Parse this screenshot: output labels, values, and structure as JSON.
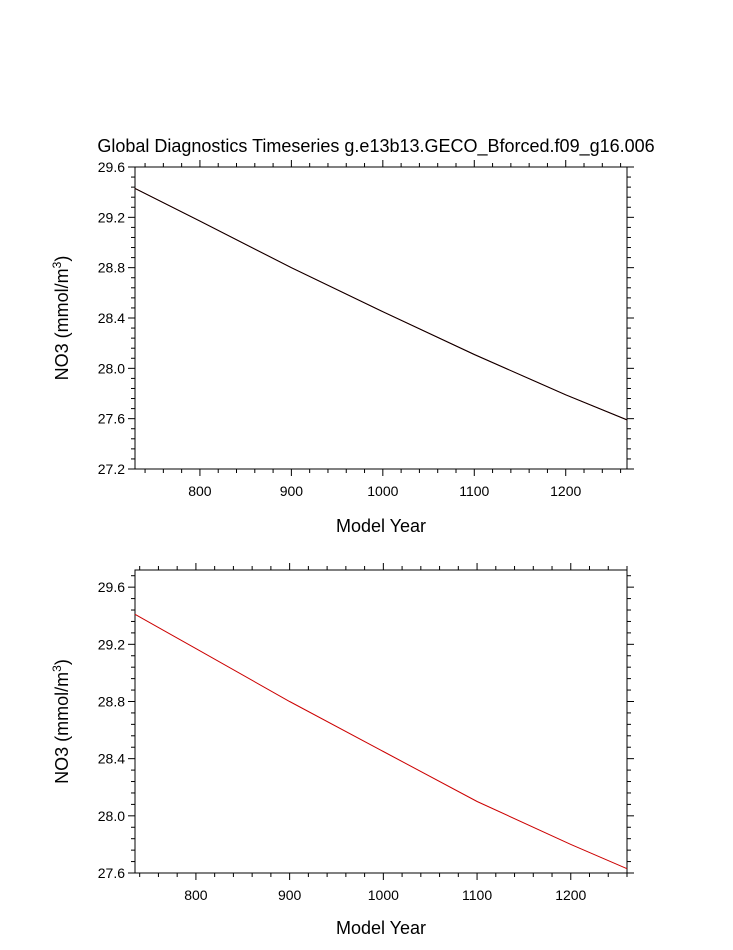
{
  "title": "Global Diagnostics Timeseries g.e13b13.GECO_Bforced.f09_g16.006",
  "chart_data": [
    {
      "type": "line",
      "xlabel": "Model Year",
      "ylabel_main": "NO3 (mmol/m",
      "ylabel_sup": "3",
      "ylabel_close": ")",
      "xlim": [
        729,
        1267
      ],
      "ylim": [
        27.2,
        29.6
      ],
      "xticks": [
        800,
        900,
        1000,
        1100,
        1200
      ],
      "yticks": [
        27.2,
        27.6,
        28.0,
        28.4,
        28.8,
        29.2,
        29.6
      ],
      "ytick_labels": [
        "27.2",
        "27.6",
        "28.0",
        "28.4",
        "28.8",
        "29.2",
        "29.6"
      ],
      "series": [
        {
          "color": "#cc0000",
          "x": [
            729,
            800,
            900,
            1000,
            1100,
            1200,
            1267
          ],
          "y": [
            29.43,
            29.17,
            28.8,
            28.45,
            28.11,
            27.79,
            27.59
          ]
        },
        {
          "color": "#000000",
          "x": [
            729,
            800,
            900,
            1000,
            1100,
            1200,
            1267
          ],
          "y": [
            29.43,
            29.17,
            28.8,
            28.45,
            28.11,
            27.79,
            27.59
          ]
        }
      ]
    },
    {
      "type": "line",
      "xlabel": "Model Year",
      "ylabel_main": "NO3 (mmol/m",
      "ylabel_sup": "3",
      "ylabel_close": ")",
      "xlim": [
        735,
        1260
      ],
      "ylim": [
        27.6,
        29.72
      ],
      "xticks": [
        800,
        900,
        1000,
        1100,
        1200
      ],
      "yticks": [
        27.6,
        28.0,
        28.4,
        28.8,
        29.2,
        29.6
      ],
      "ytick_labels": [
        "27.6",
        "28.0",
        "28.4",
        "28.8",
        "29.2",
        "29.6"
      ],
      "series": [
        {
          "color": "#cc0000",
          "x": [
            735,
            800,
            900,
            1000,
            1100,
            1200,
            1260
          ],
          "y": [
            29.41,
            29.17,
            28.8,
            28.45,
            28.1,
            27.8,
            27.63
          ]
        }
      ]
    }
  ]
}
